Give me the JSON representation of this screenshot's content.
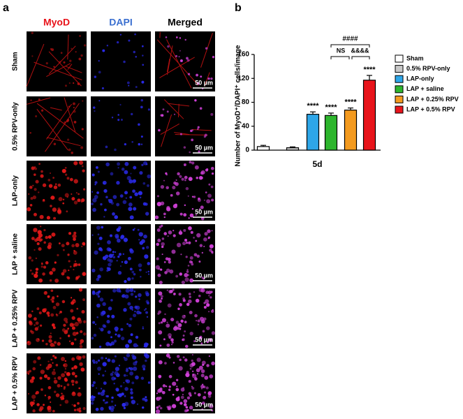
{
  "panel_a": {
    "label": "a",
    "columns": [
      "MyoD",
      "DAPI",
      "Merged"
    ],
    "rows": [
      "Sham",
      "0.5% RPV-only",
      "LAP-only",
      "LAP + saline",
      "LAP + 0.25% RPV",
      "LAP + 0.5% RPV"
    ],
    "scale_bars": [
      "50 µm",
      "50 µm",
      "50 µm",
      "50 µm",
      "50 µm",
      "50 µm"
    ]
  },
  "chart_data": {
    "type": "bar",
    "label": "b",
    "y_label": "Number of MyoD⁺/DAPI⁺ cells/image",
    "x_label": "5d",
    "categories": [
      "5d"
    ],
    "series": [
      {
        "name": "Sham",
        "color": "#ffffff",
        "values": [
          6
        ],
        "errors": [
          2
        ]
      },
      {
        "name": "0.5% RPV-only",
        "color": "#c8c8c8",
        "values": [
          4
        ],
        "errors": [
          1.5
        ]
      },
      {
        "name": "LAP-only",
        "color": "#2ea6e8",
        "values": [
          60
        ],
        "errors": [
          4
        ]
      },
      {
        "name": "LAP + saline",
        "color": "#2db52d",
        "values": [
          58
        ],
        "errors": [
          4
        ]
      },
      {
        "name": "LAP + 0.25% RPV",
        "color": "#f39a1f",
        "values": [
          67
        ],
        "errors": [
          3.5
        ]
      },
      {
        "name": "LAP + 0.5% RPV",
        "color": "#e8141b",
        "values": [
          117
        ],
        "errors": [
          8
        ]
      }
    ],
    "annotations": [
      "****",
      "****",
      "****",
      "****",
      "NS",
      "&&&&",
      "####"
    ],
    "ylim": [
      0,
      160
    ],
    "yticks": [
      0,
      40,
      80,
      120,
      160
    ]
  }
}
